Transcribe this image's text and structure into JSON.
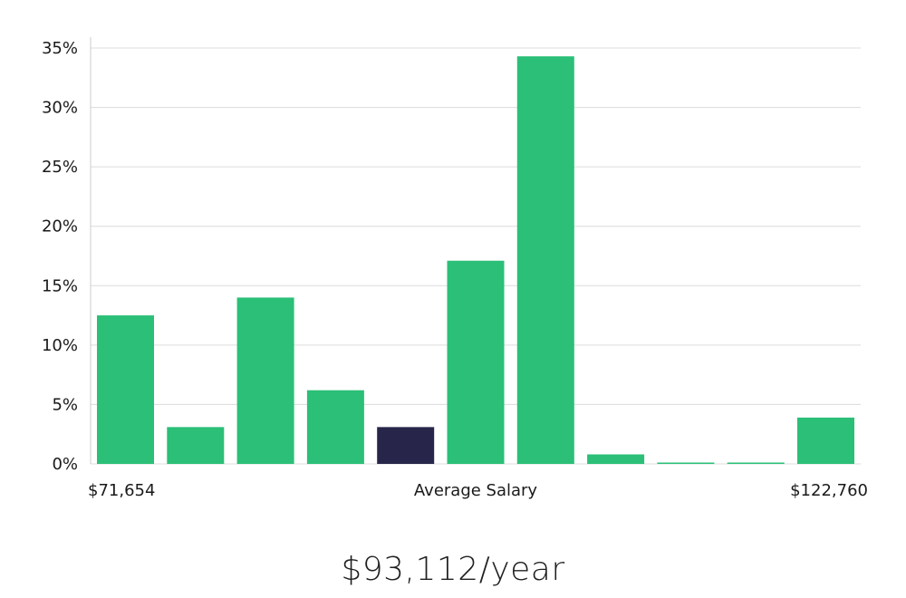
{
  "chart_data": {
    "type": "bar",
    "title": "",
    "xlabel": "Average Salary",
    "ylabel": "",
    "ylim": [
      0,
      35
    ],
    "y_ticks": [
      0,
      5,
      10,
      15,
      20,
      25,
      30,
      35
    ],
    "y_tick_suffix": "%",
    "grid": true,
    "x_min_label": "$71,654",
    "x_max_label": "$122,760",
    "values": [
      12.5,
      3.1,
      14.0,
      6.2,
      3.1,
      17.1,
      34.3,
      0.8,
      0.05,
      0.05,
      3.9
    ],
    "highlight_index": 4,
    "colors": {
      "bar": "#2bbf77",
      "highlight": "#27264a",
      "grid": "#dcdcdc",
      "axis": "#cccccc"
    }
  },
  "average_salary": "$93,112/year"
}
